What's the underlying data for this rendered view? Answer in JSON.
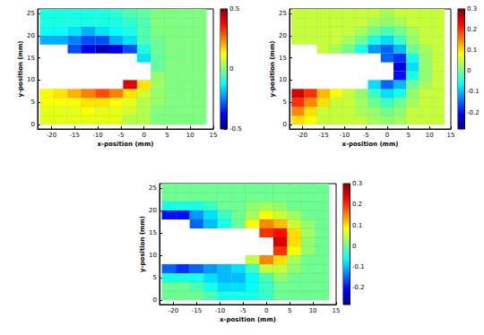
{
  "chart_data": [
    {
      "type": "heatmap",
      "xlabel": "x-position (mm)",
      "ylabel": "y-position (mm)",
      "grid": false,
      "xlim": [
        -23,
        15
      ],
      "xticks": [
        -20,
        -15,
        -10,
        -5,
        0,
        5,
        10,
        15
      ],
      "ylim": [
        -1,
        26
      ],
      "yticks": [
        0,
        5,
        10,
        15,
        20,
        25
      ],
      "x": [
        -21,
        -18,
        -15,
        -12,
        -9,
        -6,
        -3,
        0,
        3,
        6,
        9,
        12
      ],
      "y": [
        1,
        3,
        5,
        7,
        9,
        11,
        13,
        15,
        17,
        19,
        21,
        23,
        25
      ],
      "cells": [
        [
          0.1,
          0.1,
          0.1,
          0.1,
          0.1,
          0.1,
          0.05,
          0.05,
          0,
          0,
          0,
          0
        ],
        [
          0.1,
          0.1,
          0.1,
          0.12,
          0.1,
          0.1,
          0.08,
          0.05,
          0,
          0,
          0,
          0
        ],
        [
          0.12,
          0.12,
          0.12,
          0.15,
          0.15,
          0.12,
          0.1,
          0.05,
          0.02,
          0,
          0,
          0
        ],
        [
          0.12,
          0.15,
          0.2,
          0.25,
          0.3,
          0.25,
          0.15,
          0.08,
          0.02,
          0,
          0,
          0
        ],
        [
          null,
          null,
          null,
          null,
          null,
          null,
          0.4,
          0.15,
          0.03,
          0,
          0,
          0
        ],
        [
          null,
          null,
          null,
          null,
          null,
          null,
          null,
          null,
          0.02,
          0,
          0,
          0
        ],
        [
          null,
          null,
          null,
          null,
          null,
          null,
          null,
          null,
          -0.03,
          0,
          0,
          0
        ],
        [
          null,
          null,
          null,
          null,
          null,
          null,
          null,
          -0.15,
          -0.03,
          0,
          0,
          0
        ],
        [
          null,
          null,
          -0.3,
          -0.4,
          -0.45,
          -0.4,
          -0.3,
          -0.1,
          -0.02,
          0,
          0,
          0
        ],
        [
          -0.2,
          -0.2,
          -0.25,
          -0.3,
          -0.3,
          -0.2,
          -0.15,
          -0.05,
          -0.02,
          0,
          0,
          0
        ],
        [
          -0.12,
          -0.12,
          -0.15,
          -0.2,
          -0.15,
          -0.12,
          -0.1,
          -0.05,
          0,
          0,
          0,
          0
        ],
        [
          -0.1,
          -0.1,
          -0.1,
          -0.1,
          -0.1,
          -0.1,
          -0.08,
          -0.05,
          0,
          0,
          0,
          0
        ],
        [
          -0.1,
          -0.1,
          -0.1,
          -0.1,
          -0.1,
          -0.08,
          -0.05,
          -0.03,
          0,
          0,
          0,
          0
        ]
      ],
      "colorbar": {
        "range": [
          -0.5,
          0.5
        ],
        "ticks": [
          -0.5,
          0,
          0.5
        ]
      }
    },
    {
      "type": "heatmap",
      "xlabel": "x-position (mm)",
      "ylabel": "y-position (mm)",
      "grid": false,
      "xlim": [
        -23,
        15
      ],
      "xticks": [
        -20,
        -15,
        -10,
        -5,
        0,
        5,
        10,
        15
      ],
      "ylim": [
        -1,
        26
      ],
      "yticks": [
        0,
        5,
        10,
        15,
        20,
        25
      ],
      "x": [
        -21,
        -18,
        -15,
        -12,
        -9,
        -6,
        -3,
        0,
        3,
        6,
        9,
        12
      ],
      "y": [
        1,
        3,
        5,
        7,
        9,
        11,
        13,
        15,
        17,
        19,
        21,
        23,
        25
      ],
      "cells": [
        [
          0.1,
          0.08,
          0.05,
          0.05,
          0.05,
          0.05,
          0.03,
          0.02,
          0.03,
          0.05,
          0.05,
          0.05
        ],
        [
          0.15,
          0.1,
          0.05,
          0.05,
          0.05,
          0.03,
          0.02,
          0,
          0.02,
          0.05,
          0.05,
          0.05
        ],
        [
          0.2,
          0.15,
          0.1,
          0.05,
          0.05,
          0.03,
          0,
          -0.03,
          0,
          0.03,
          0.05,
          0.05
        ],
        [
          0.25,
          0.2,
          0.12,
          0.08,
          0.05,
          0.02,
          -0.03,
          -0.08,
          -0.05,
          0.02,
          0.05,
          0.05
        ],
        [
          null,
          null,
          null,
          null,
          null,
          null,
          -0.08,
          -0.15,
          -0.1,
          0,
          0.03,
          0.05
        ],
        [
          null,
          null,
          null,
          null,
          null,
          null,
          null,
          null,
          -0.2,
          -0.05,
          0.02,
          0.05
        ],
        [
          null,
          null,
          null,
          null,
          null,
          null,
          null,
          null,
          -0.22,
          -0.08,
          0.02,
          0.05
        ],
        [
          null,
          null,
          null,
          null,
          null,
          null,
          null,
          -0.15,
          -0.18,
          -0.05,
          0.02,
          0.05
        ],
        [
          null,
          null,
          0.05,
          0.03,
          0,
          -0.05,
          -0.12,
          -0.15,
          -0.1,
          0,
          0.03,
          0.05
        ],
        [
          0.05,
          0.05,
          0.05,
          0.05,
          0.03,
          0,
          -0.05,
          -0.08,
          -0.03,
          0.02,
          0.05,
          0.05
        ],
        [
          0.05,
          0.05,
          0.05,
          0.05,
          0.05,
          0.03,
          0,
          -0.02,
          0,
          0.03,
          0.05,
          0.05
        ],
        [
          0.05,
          0.05,
          0.05,
          0.05,
          0.05,
          0.05,
          0.03,
          0.02,
          0.03,
          0.05,
          0.05,
          0.05
        ],
        [
          0.05,
          0.05,
          0.05,
          0.05,
          0.05,
          0.05,
          0.05,
          0.03,
          0.05,
          0.05,
          0.05,
          0.05
        ]
      ],
      "colorbar": {
        "range": [
          -0.28,
          0.3
        ],
        "ticks": [
          -0.2,
          -0.1,
          0,
          0.1,
          0.2,
          0.3
        ]
      }
    },
    {
      "type": "heatmap",
      "xlabel": "x-position (mm)",
      "ylabel": "y-position (mm)",
      "grid": false,
      "xlim": [
        -23,
        15
      ],
      "xticks": [
        -20,
        -15,
        -10,
        -5,
        0,
        5,
        10,
        15
      ],
      "ylim": [
        -1,
        26
      ],
      "yticks": [
        0,
        5,
        10,
        15,
        20,
        25
      ],
      "x": [
        -21,
        -18,
        -15,
        -12,
        -9,
        -6,
        -3,
        0,
        3,
        6,
        9,
        12
      ],
      "y": [
        1,
        3,
        5,
        7,
        9,
        11,
        13,
        15,
        17,
        19,
        21,
        23,
        25
      ],
      "cells": [
        [
          0,
          0,
          0,
          -0.02,
          -0.05,
          -0.05,
          -0.05,
          -0.03,
          0,
          0,
          0,
          0
        ],
        [
          0,
          0,
          -0.02,
          -0.05,
          -0.08,
          -0.08,
          -0.06,
          -0.03,
          0,
          0,
          0,
          0
        ],
        [
          -0.05,
          -0.05,
          -0.05,
          -0.08,
          -0.1,
          -0.1,
          -0.06,
          -0.02,
          0.02,
          0,
          0,
          0
        ],
        [
          -0.15,
          -0.18,
          -0.15,
          -0.12,
          -0.1,
          -0.08,
          -0.03,
          0.05,
          0.05,
          0.02,
          0,
          0
        ],
        [
          null,
          null,
          null,
          null,
          null,
          null,
          0.05,
          0.15,
          0.1,
          0.03,
          0,
          0
        ],
        [
          null,
          null,
          null,
          null,
          null,
          null,
          null,
          null,
          0.2,
          0.08,
          0.02,
          0
        ],
        [
          null,
          null,
          null,
          null,
          null,
          null,
          null,
          null,
          0.25,
          0.1,
          0.02,
          0
        ],
        [
          null,
          null,
          null,
          null,
          null,
          null,
          null,
          0.2,
          0.22,
          0.1,
          0.03,
          0
        ],
        [
          null,
          null,
          -0.15,
          -0.1,
          -0.05,
          0,
          0.08,
          0.15,
          0.12,
          0.05,
          0.02,
          0
        ],
        [
          -0.2,
          -0.2,
          -0.12,
          -0.08,
          -0.03,
          0,
          0.03,
          0.08,
          0.05,
          0.03,
          0,
          0
        ],
        [
          -0.05,
          -0.05,
          -0.05,
          -0.03,
          0,
          0,
          0.02,
          0.03,
          0.02,
          0,
          0,
          0
        ],
        [
          0,
          0,
          0,
          0,
          0,
          0,
          0,
          0,
          0,
          0,
          0,
          0
        ],
        [
          0,
          0,
          0,
          0,
          0,
          0,
          0,
          0,
          0,
          0,
          0,
          0
        ]
      ],
      "colorbar": {
        "range": [
          -0.28,
          0.3
        ],
        "ticks": [
          -0.2,
          -0.1,
          0,
          0.1,
          0.2,
          0.3
        ]
      }
    }
  ]
}
